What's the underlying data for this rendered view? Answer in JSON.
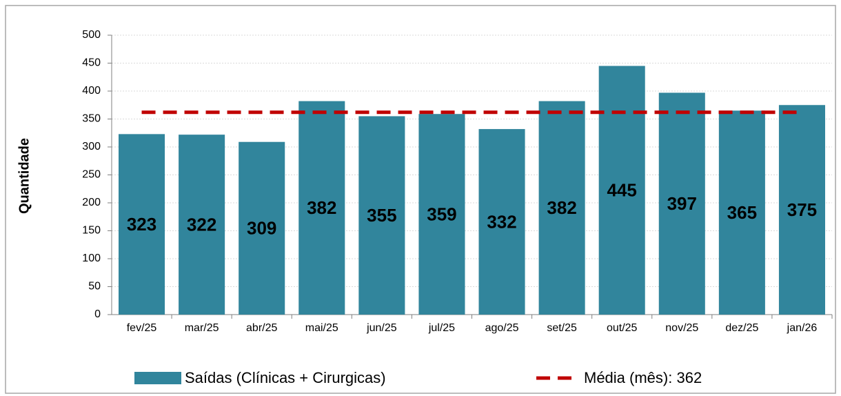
{
  "chart_data": {
    "type": "bar",
    "y_label": "Quantidade",
    "categories": [
      "fev/25",
      "mar/25",
      "abr/25",
      "mai/25",
      "jun/25",
      "jul/25",
      "ago/25",
      "set/25",
      "out/25",
      "nov/25",
      "dez/25",
      "jan/26"
    ],
    "series": [
      {
        "name": "Saídas (Clínicas + Cirurgicas)",
        "type": "bar",
        "color": "#31859c",
        "values": [
          323,
          322,
          309,
          382,
          355,
          359,
          332,
          382,
          445,
          397,
          365,
          375
        ]
      },
      {
        "name": "Média (mês): 362",
        "type": "line",
        "color": "#c00000",
        "dashed": true,
        "values": [
          362,
          362,
          362,
          362,
          362,
          362,
          362,
          362,
          362,
          362,
          362,
          362
        ]
      }
    ],
    "label_color": "#ffff00",
    "ylim": [
      0,
      500
    ],
    "yticks": [
      0,
      50,
      100,
      150,
      200,
      250,
      300,
      350,
      400,
      450,
      500
    ],
    "grid": true
  }
}
